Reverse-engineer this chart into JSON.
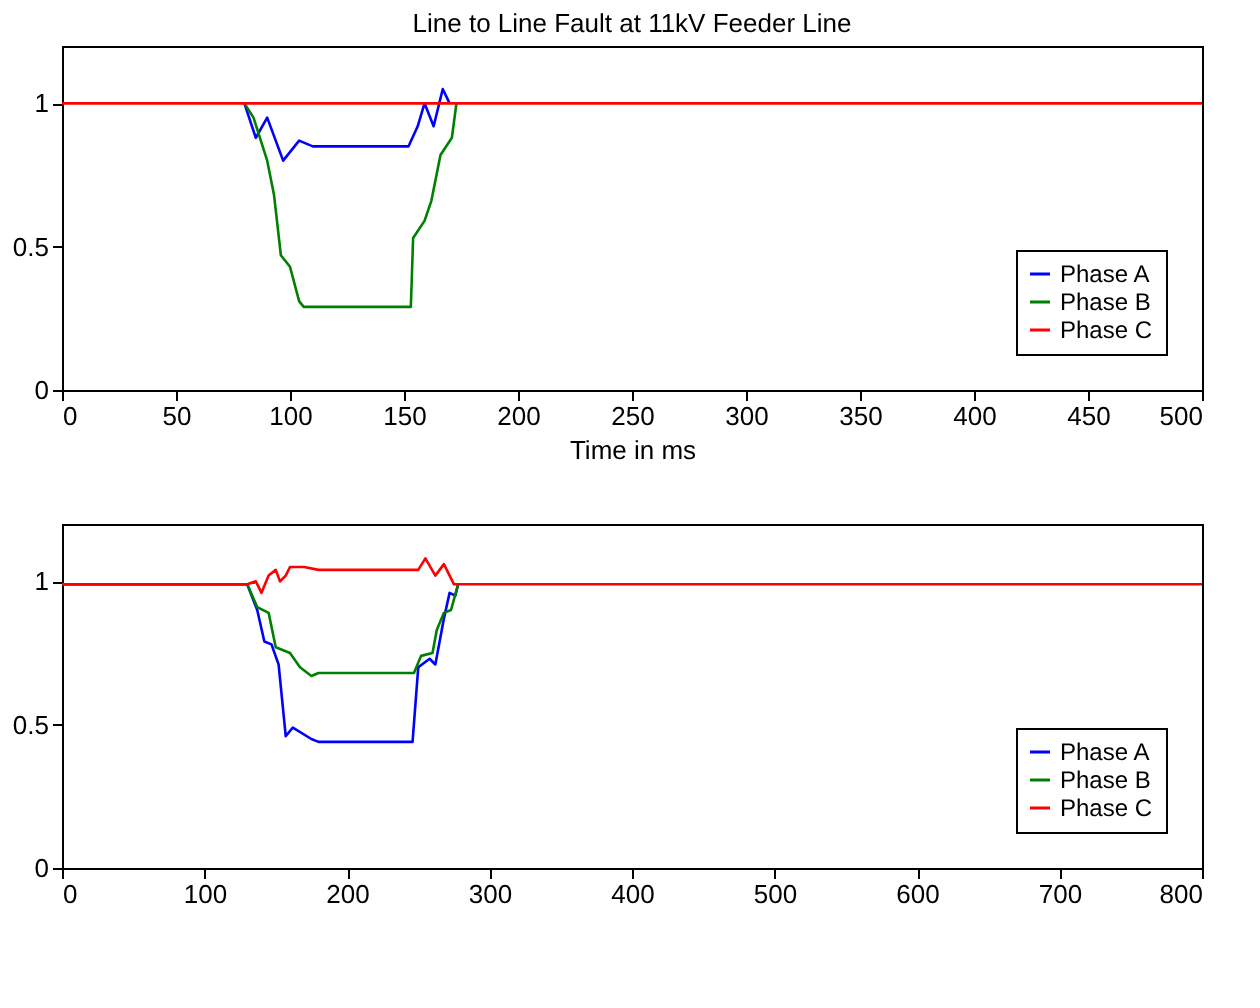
{
  "chart_data": [
    {
      "type": "line",
      "title": "Line to Line Fault at 11kV Feeder Line",
      "xlabel": "Time in ms",
      "xlim": [
        0,
        500
      ],
      "xticks": [
        0,
        50,
        100,
        150,
        200,
        250,
        300,
        350,
        400,
        450,
        500
      ],
      "ylim": [
        0,
        1.2
      ],
      "yticks": [
        0,
        0.5,
        1
      ],
      "grid": false,
      "legend": "bottom right",
      "series": [
        {
          "name": "Phase A",
          "color": "#0000ff",
          "x": [
            80,
            85,
            90,
            97,
            104,
            110,
            152,
            156,
            159,
            163,
            167,
            170
          ],
          "values": [
            1.0,
            0.88,
            0.95,
            0.8,
            0.87,
            0.85,
            0.85,
            0.92,
            1.0,
            0.92,
            1.05,
            1.0
          ]
        },
        {
          "name": "Phase B",
          "color": "#008000",
          "x": [
            80,
            84,
            90,
            93,
            96,
            100,
            104,
            106,
            153,
            154,
            159,
            162,
            166,
            171,
            173
          ],
          "values": [
            1.0,
            0.95,
            0.8,
            0.68,
            0.47,
            0.43,
            0.31,
            0.29,
            0.29,
            0.53,
            0.59,
            0.66,
            0.82,
            0.88,
            1.0
          ]
        },
        {
          "name": "Phase C",
          "color": "#ff0000",
          "x": [
            0,
            500
          ],
          "values": [
            1.0,
            1.0
          ]
        }
      ]
    },
    {
      "type": "line",
      "xlim": [
        0,
        800
      ],
      "xticks": [
        0,
        100,
        200,
        300,
        400,
        500,
        600,
        700,
        800
      ],
      "ylim": [
        0,
        1.2
      ],
      "yticks": [
        0,
        0.5,
        1
      ],
      "grid": false,
      "legend": "bottom right",
      "series": [
        {
          "name": "Phase A",
          "color": "#0000ff",
          "x": [
            0,
            130,
            137,
            142,
            147,
            152,
            157,
            162,
            175,
            180,
            246,
            250,
            258,
            262,
            268,
            272,
            276,
            278
          ],
          "values": [
            0.99,
            0.99,
            0.9,
            0.79,
            0.78,
            0.71,
            0.46,
            0.49,
            0.45,
            0.44,
            0.44,
            0.7,
            0.73,
            0.71,
            0.87,
            0.96,
            0.95,
            0.99
          ]
        },
        {
          "name": "Phase B",
          "color": "#008000",
          "x": [
            0,
            130,
            137,
            145,
            150,
            160,
            167,
            175,
            180,
            247,
            252,
            260,
            263,
            268,
            273,
            278
          ],
          "values": [
            0.99,
            0.99,
            0.91,
            0.89,
            0.77,
            0.75,
            0.7,
            0.67,
            0.68,
            0.68,
            0.74,
            0.75,
            0.83,
            0.89,
            0.9,
            0.99
          ]
        },
        {
          "name": "Phase C",
          "color": "#ff0000",
          "x": [
            0,
            130,
            136,
            140,
            145,
            150,
            153,
            157,
            160,
            170,
            180,
            250,
            255,
            262,
            268,
            275,
            800
          ],
          "values": [
            0.99,
            0.99,
            1.0,
            0.96,
            1.02,
            1.04,
            1.0,
            1.02,
            1.05,
            1.05,
            1.04,
            1.04,
            1.08,
            1.02,
            1.06,
            0.99,
            0.99
          ]
        }
      ]
    }
  ]
}
